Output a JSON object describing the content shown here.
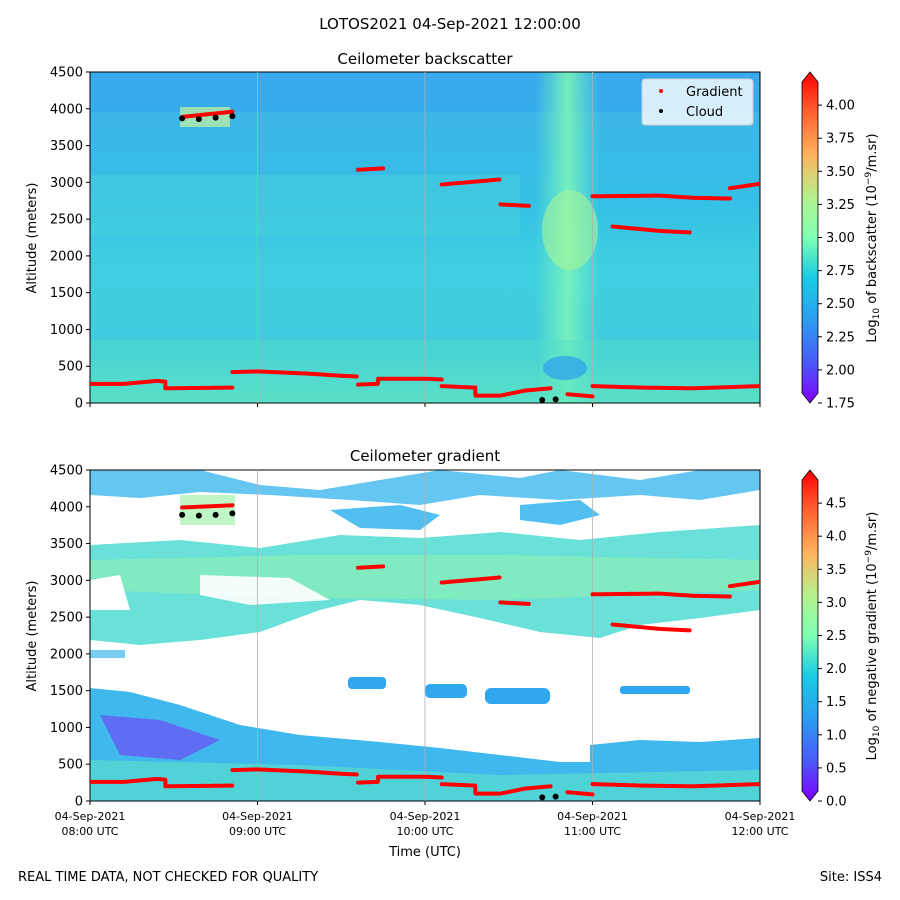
{
  "suptitle": "LOTOS2021 04-Sep-2021 12:00:00",
  "footer": {
    "left": "REAL TIME DATA, NOT CHECKED FOR QUALITY",
    "right": "Site: ISS4"
  },
  "colors": {
    "gradient_marker": "#ff0000",
    "cloud_marker": "#000000",
    "grid": "#b0b0b0"
  },
  "chart_data": [
    {
      "type": "heatmap",
      "title": "Ceilometer backscatter",
      "xlabel": "",
      "ylabel": "Altitude (meters)",
      "ylim": [
        0,
        4500
      ],
      "yticks": [
        0,
        500,
        1000,
        1500,
        2000,
        2500,
        3000,
        3500,
        4000,
        4500
      ],
      "xlim_hours": [
        8,
        12
      ],
      "colorbar": {
        "label_prefix": "Log",
        "label_sub": "10",
        "label_mid": " of backscatter (10",
        "label_sup": "−9",
        "label_suffix": "/m.sr)",
        "range": [
          1.75,
          4.25
        ],
        "ticks": [
          "1.75",
          "2.00",
          "2.25",
          "2.50",
          "2.75",
          "3.00",
          "3.25",
          "3.50",
          "3.75",
          "4.00"
        ]
      },
      "legend": {
        "position": "top-right",
        "entries": [
          "Gradient",
          "Cloud"
        ]
      },
      "gradient_layers": [
        [
          [
            8.0,
            260
          ],
          [
            8.2,
            260
          ],
          [
            8.4,
            300
          ],
          [
            8.45,
            290
          ],
          [
            8.45,
            200
          ],
          [
            8.85,
            210
          ]
        ],
        [
          [
            8.85,
            420
          ],
          [
            9.0,
            430
          ],
          [
            9.3,
            400
          ],
          [
            9.5,
            370
          ],
          [
            9.6,
            360
          ]
        ],
        [
          [
            9.6,
            250
          ],
          [
            9.72,
            260
          ],
          [
            9.72,
            330
          ],
          [
            10.0,
            330
          ],
          [
            10.1,
            320
          ]
        ],
        [
          [
            10.1,
            230
          ],
          [
            10.3,
            210
          ],
          [
            10.3,
            100
          ],
          [
            10.45,
            100
          ],
          [
            10.6,
            170
          ],
          [
            10.75,
            200
          ]
        ],
        [
          [
            10.85,
            120
          ],
          [
            11.0,
            90
          ]
        ],
        [
          [
            11.0,
            230
          ],
          [
            11.3,
            210
          ],
          [
            11.6,
            200
          ],
          [
            12.0,
            230
          ]
        ],
        [
          [
            9.6,
            3170
          ],
          [
            9.75,
            3190
          ]
        ],
        [
          [
            10.1,
            2970
          ],
          [
            10.3,
            3010
          ],
          [
            10.45,
            3040
          ]
        ],
        [
          [
            10.45,
            2700
          ],
          [
            10.62,
            2680
          ]
        ],
        [
          [
            11.0,
            2810
          ],
          [
            11.4,
            2820
          ],
          [
            11.6,
            2790
          ],
          [
            11.82,
            2780
          ]
        ],
        [
          [
            11.82,
            2920
          ],
          [
            12.0,
            2980
          ]
        ],
        [
          [
            11.12,
            2400
          ],
          [
            11.4,
            2340
          ],
          [
            11.58,
            2320
          ]
        ],
        [
          [
            8.55,
            3890
          ],
          [
            8.85,
            3960
          ]
        ]
      ],
      "cloud_points": [
        [
          8.55,
          3870
        ],
        [
          8.65,
          3860
        ],
        [
          8.75,
          3880
        ],
        [
          8.85,
          3900
        ],
        [
          10.7,
          40
        ],
        [
          10.78,
          50
        ]
      ]
    },
    {
      "type": "heatmap",
      "title": "Ceilometer gradient",
      "xlabel": "Time (UTC)",
      "ylabel": "Altitude (meters)",
      "ylim": [
        0,
        4500
      ],
      "yticks": [
        0,
        500,
        1000,
        1500,
        2000,
        2500,
        3000,
        3500,
        4000,
        4500
      ],
      "xlim_hours": [
        8,
        12
      ],
      "xticks": [
        {
          "hour": 8,
          "date": "04-Sep-2021",
          "time": "08:00 UTC"
        },
        {
          "hour": 9,
          "date": "04-Sep-2021",
          "time": "09:00 UTC"
        },
        {
          "hour": 10,
          "date": "04-Sep-2021",
          "time": "10:00 UTC"
        },
        {
          "hour": 11,
          "date": "04-Sep-2021",
          "time": "11:00 UTC"
        },
        {
          "hour": 12,
          "date": "04-Sep-2021",
          "time": "12:00 UTC"
        }
      ],
      "colorbar": {
        "label_prefix": "Log",
        "label_sub": "10",
        "label_mid": " of negative gradient (10",
        "label_sup": "−9",
        "label_suffix": "/m.sr)",
        "range": [
          0,
          5
        ],
        "ticks": [
          "0.0",
          "0.5",
          "1.0",
          "1.5",
          "2.0",
          "2.5",
          "3.0",
          "3.5",
          "4.0",
          "4.5"
        ]
      },
      "gradient_layers": [
        [
          [
            8.0,
            260
          ],
          [
            8.2,
            260
          ],
          [
            8.4,
            300
          ],
          [
            8.45,
            290
          ],
          [
            8.45,
            200
          ],
          [
            8.85,
            210
          ]
        ],
        [
          [
            8.85,
            420
          ],
          [
            9.0,
            430
          ],
          [
            9.3,
            400
          ],
          [
            9.5,
            370
          ],
          [
            9.6,
            360
          ]
        ],
        [
          [
            9.6,
            250
          ],
          [
            9.72,
            260
          ],
          [
            9.72,
            330
          ],
          [
            10.0,
            330
          ],
          [
            10.1,
            320
          ]
        ],
        [
          [
            10.1,
            230
          ],
          [
            10.3,
            210
          ],
          [
            10.3,
            100
          ],
          [
            10.45,
            100
          ],
          [
            10.6,
            170
          ],
          [
            10.75,
            200
          ]
        ],
        [
          [
            10.85,
            120
          ],
          [
            11.0,
            90
          ]
        ],
        [
          [
            11.0,
            230
          ],
          [
            11.3,
            210
          ],
          [
            11.6,
            200
          ],
          [
            12.0,
            230
          ]
        ],
        [
          [
            9.6,
            3170
          ],
          [
            9.75,
            3190
          ]
        ],
        [
          [
            10.1,
            2970
          ],
          [
            10.3,
            3010
          ],
          [
            10.45,
            3040
          ]
        ],
        [
          [
            10.45,
            2700
          ],
          [
            10.62,
            2680
          ]
        ],
        [
          [
            11.0,
            2810
          ],
          [
            11.4,
            2820
          ],
          [
            11.6,
            2790
          ],
          [
            11.82,
            2780
          ]
        ],
        [
          [
            11.82,
            2920
          ],
          [
            12.0,
            2980
          ]
        ],
        [
          [
            11.12,
            2400
          ],
          [
            11.4,
            2340
          ],
          [
            11.58,
            2320
          ]
        ],
        [
          [
            8.55,
            3990
          ],
          [
            8.85,
            4020
          ]
        ]
      ],
      "cloud_points": [
        [
          8.55,
          3890
        ],
        [
          8.65,
          3880
        ],
        [
          8.75,
          3890
        ],
        [
          8.85,
          3910
        ],
        [
          10.7,
          50
        ],
        [
          10.78,
          60
        ]
      ]
    }
  ]
}
